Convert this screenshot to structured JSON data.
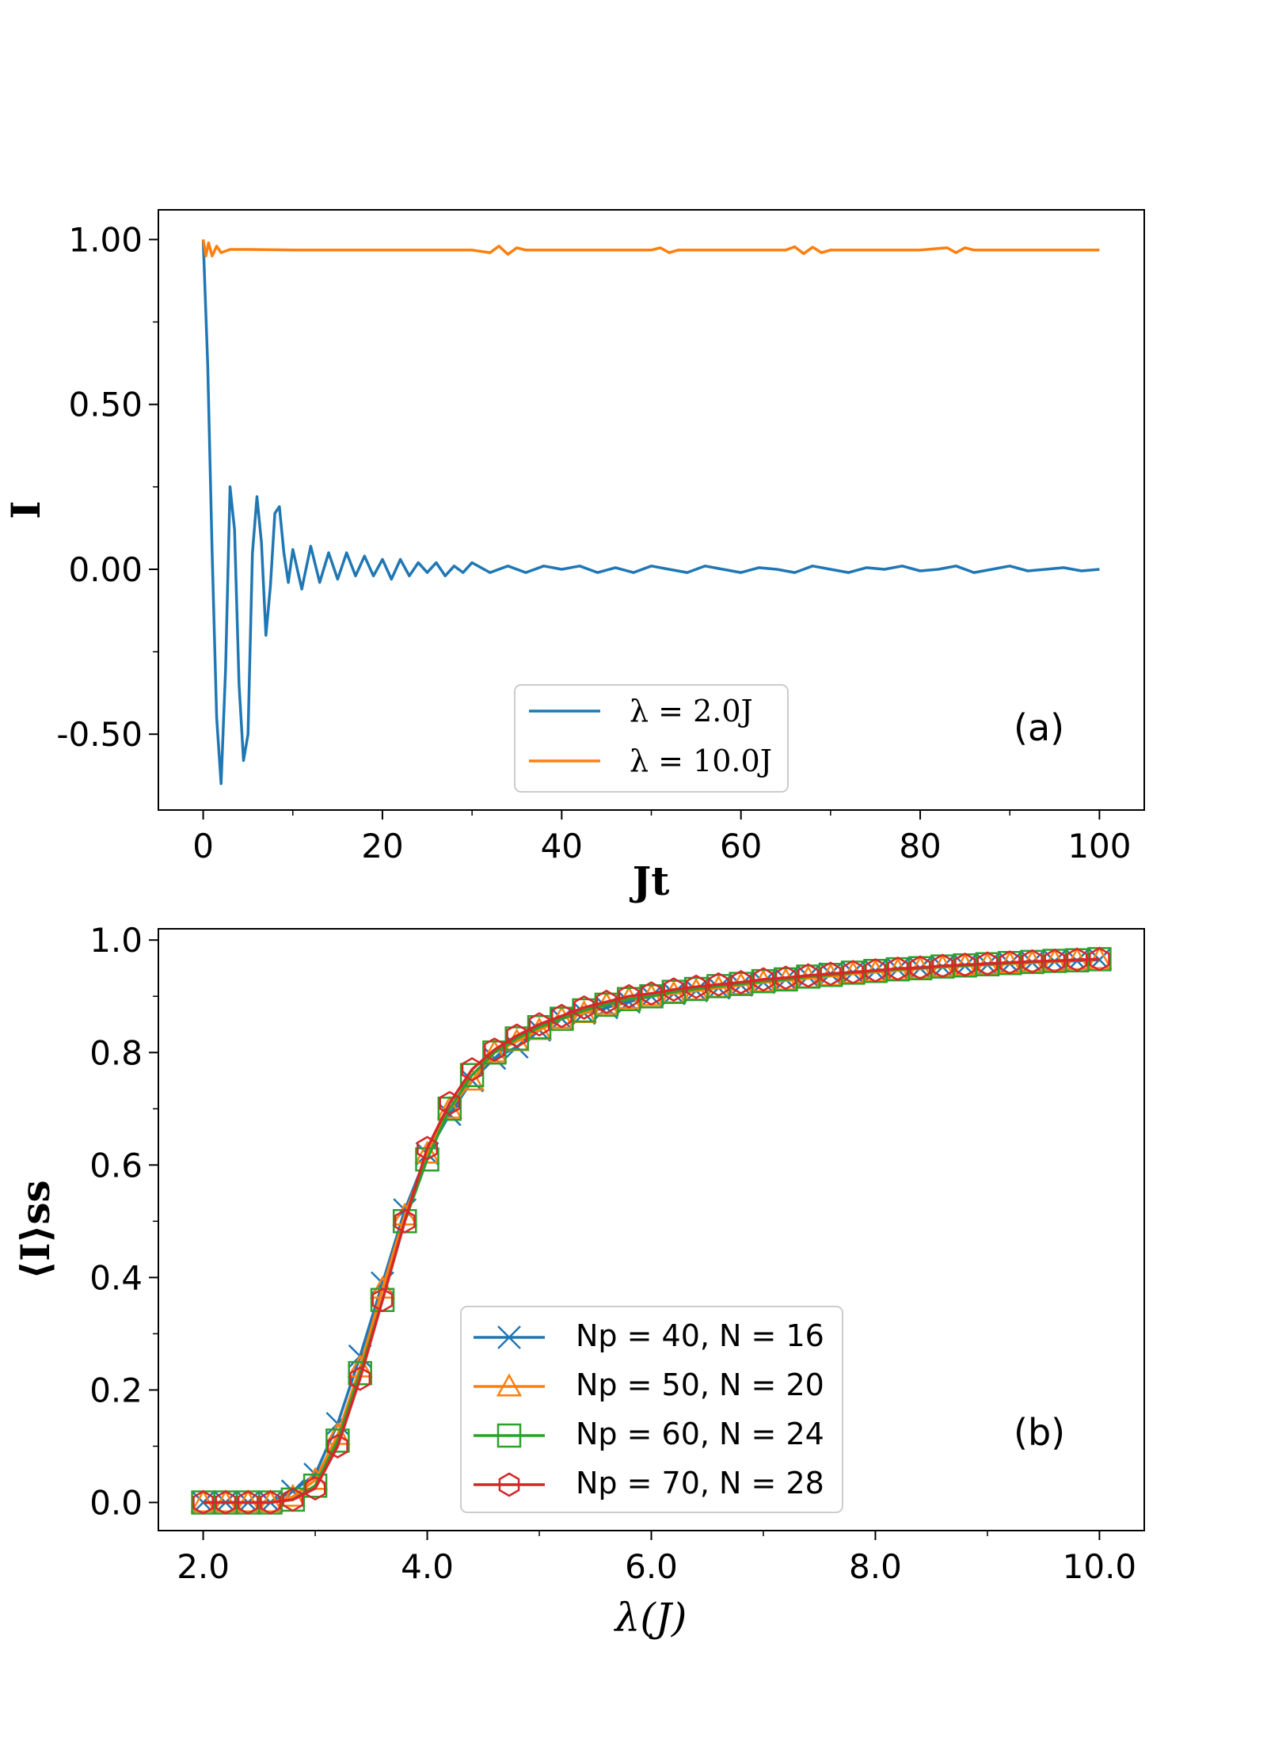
{
  "chart_data": [
    {
      "type": "line",
      "panel": "(a)",
      "xlabel": "Jt",
      "ylabel": "I",
      "xlim": [
        -5,
        105
      ],
      "ylim": [
        -0.73,
        1.09
      ],
      "xticks": [
        0,
        20,
        40,
        60,
        80,
        100
      ],
      "xtick_labels": [
        "0",
        "20",
        "40",
        "60",
        "80",
        "100"
      ],
      "yticks": [
        -0.5,
        0.0,
        0.5,
        1.0
      ],
      "ytick_labels": [
        "-0.50",
        "0.00",
        "0.50",
        "1.00"
      ],
      "legend_location": "lower-center",
      "series": [
        {
          "name": "λ = 2.0J",
          "color": "#1f77b4",
          "x": [
            0,
            0.5,
            1,
            1.5,
            2,
            2.5,
            3,
            3.5,
            4,
            4.5,
            5,
            5.5,
            6,
            6.5,
            7,
            7.5,
            8,
            8.5,
            9,
            9.5,
            10,
            11,
            12,
            13,
            14,
            15,
            16,
            17,
            18,
            19,
            20,
            21,
            22,
            23,
            24,
            25,
            26,
            27,
            28,
            29,
            30,
            32,
            34,
            36,
            38,
            40,
            42,
            44,
            46,
            48,
            50,
            52,
            54,
            56,
            58,
            60,
            62,
            64,
            66,
            68,
            70,
            72,
            74,
            76,
            78,
            80,
            82,
            84,
            86,
            88,
            90,
            92,
            94,
            96,
            98,
            100
          ],
          "values": [
            1.0,
            0.62,
            0.05,
            -0.45,
            -0.65,
            -0.3,
            0.25,
            0.12,
            -0.35,
            -0.58,
            -0.5,
            0.05,
            0.22,
            0.08,
            -0.2,
            -0.05,
            0.17,
            0.19,
            0.05,
            -0.04,
            0.06,
            -0.06,
            0.07,
            -0.04,
            0.05,
            -0.03,
            0.05,
            -0.02,
            0.04,
            -0.02,
            0.03,
            -0.03,
            0.03,
            -0.02,
            0.02,
            -0.01,
            0.02,
            -0.02,
            0.01,
            -0.01,
            0.02,
            -0.01,
            0.01,
            -0.01,
            0.01,
            0.0,
            0.01,
            -0.01,
            0.005,
            -0.01,
            0.01,
            0.0,
            -0.01,
            0.01,
            0.0,
            -0.01,
            0.005,
            0.0,
            -0.01,
            0.01,
            0.0,
            -0.01,
            0.005,
            0.0,
            0.01,
            -0.005,
            0.0,
            0.01,
            -0.01,
            0.0,
            0.01,
            -0.005,
            0.0,
            0.005,
            -0.005,
            0.0
          ]
        },
        {
          "name": "λ = 10.0J",
          "color": "#ff7f0e",
          "x": [
            0,
            0.3,
            0.6,
            1,
            1.5,
            2,
            3,
            5,
            10,
            15,
            20,
            25,
            30,
            32,
            33,
            34,
            35,
            36,
            40,
            45,
            50,
            51,
            52,
            53,
            55,
            60,
            65,
            66,
            67,
            68,
            69,
            70,
            75,
            80,
            83,
            84,
            85,
            86,
            90,
            95,
            100
          ],
          "values": [
            1.0,
            0.95,
            0.99,
            0.95,
            0.98,
            0.96,
            0.97,
            0.97,
            0.968,
            0.968,
            0.968,
            0.968,
            0.968,
            0.96,
            0.98,
            0.955,
            0.975,
            0.968,
            0.968,
            0.968,
            0.968,
            0.975,
            0.96,
            0.968,
            0.968,
            0.968,
            0.968,
            0.978,
            0.957,
            0.977,
            0.96,
            0.968,
            0.968,
            0.968,
            0.975,
            0.96,
            0.975,
            0.968,
            0.968,
            0.968,
            0.968
          ]
        }
      ]
    },
    {
      "type": "line",
      "panel": "(b)",
      "xlabel": "λ(J)",
      "ylabel": "⟨I⟩ss",
      "xlim": [
        1.6,
        10.4
      ],
      "ylim": [
        -0.05,
        1.02
      ],
      "xticks": [
        2.0,
        4.0,
        6.0,
        8.0,
        10.0
      ],
      "xtick_labels": [
        "2.0",
        "4.0",
        "6.0",
        "8.0",
        "10.0"
      ],
      "yticks": [
        0.0,
        0.2,
        0.4,
        0.6,
        0.8,
        1.0
      ],
      "ytick_labels": [
        "0.0",
        "0.2",
        "0.4",
        "0.6",
        "0.8",
        "1.0"
      ],
      "legend_location": "lower-center",
      "x": [
        2.0,
        2.2,
        2.4,
        2.6,
        2.8,
        3.0,
        3.2,
        3.4,
        3.6,
        3.8,
        4.0,
        4.2,
        4.4,
        4.6,
        4.8,
        5.0,
        5.2,
        5.4,
        5.6,
        5.8,
        6.0,
        6.2,
        6.4,
        6.6,
        6.8,
        7.0,
        7.2,
        7.4,
        7.6,
        7.8,
        8.0,
        8.2,
        8.4,
        8.6,
        8.8,
        9.0,
        9.2,
        9.4,
        9.6,
        9.8,
        10.0
      ],
      "series": [
        {
          "name": "Np = 40, N = 16",
          "color": "#1f77b4",
          "marker": "x",
          "values": [
            0.0,
            0.0,
            0.0,
            0.0,
            0.02,
            0.05,
            0.14,
            0.26,
            0.39,
            0.52,
            0.62,
            0.69,
            0.75,
            0.79,
            0.81,
            0.84,
            0.86,
            0.87,
            0.88,
            0.89,
            0.9,
            0.905,
            0.91,
            0.915,
            0.92,
            0.925,
            0.93,
            0.935,
            0.94,
            0.942,
            0.945,
            0.948,
            0.95,
            0.952,
            0.954,
            0.956,
            0.958,
            0.96,
            0.962,
            0.963,
            0.965
          ]
        },
        {
          "name": "Np = 50, N = 20",
          "color": "#ff7f0e",
          "marker": "triangle",
          "values": [
            0.0,
            0.0,
            0.0,
            0.0,
            0.01,
            0.04,
            0.12,
            0.24,
            0.38,
            0.51,
            0.62,
            0.7,
            0.75,
            0.8,
            0.82,
            0.84,
            0.86,
            0.87,
            0.885,
            0.895,
            0.9,
            0.905,
            0.91,
            0.915,
            0.92,
            0.925,
            0.928,
            0.932,
            0.936,
            0.94,
            0.943,
            0.946,
            0.949,
            0.952,
            0.954,
            0.956,
            0.958,
            0.96,
            0.962,
            0.964,
            0.966
          ]
        },
        {
          "name": "Np = 60, N = 24",
          "color": "#2ca02c",
          "marker": "square",
          "values": [
            0.0,
            0.0,
            0.0,
            0.0,
            0.005,
            0.03,
            0.11,
            0.23,
            0.36,
            0.5,
            0.61,
            0.7,
            0.76,
            0.8,
            0.825,
            0.845,
            0.86,
            0.875,
            0.885,
            0.895,
            0.9,
            0.908,
            0.913,
            0.918,
            0.922,
            0.927,
            0.93,
            0.935,
            0.938,
            0.942,
            0.945,
            0.948,
            0.95,
            0.953,
            0.955,
            0.957,
            0.959,
            0.961,
            0.963,
            0.964,
            0.966
          ]
        },
        {
          "name": "Np = 70, N = 28",
          "color": "#d62728",
          "marker": "hexagon",
          "values": [
            0.0,
            0.0,
            0.0,
            0.0,
            0.005,
            0.025,
            0.1,
            0.22,
            0.36,
            0.5,
            0.63,
            0.71,
            0.77,
            0.805,
            0.83,
            0.85,
            0.865,
            0.88,
            0.89,
            0.9,
            0.905,
            0.912,
            0.917,
            0.921,
            0.925,
            0.93,
            0.933,
            0.937,
            0.94,
            0.943,
            0.946,
            0.949,
            0.951,
            0.954,
            0.956,
            0.958,
            0.96,
            0.962,
            0.963,
            0.965,
            0.966
          ]
        }
      ]
    }
  ]
}
